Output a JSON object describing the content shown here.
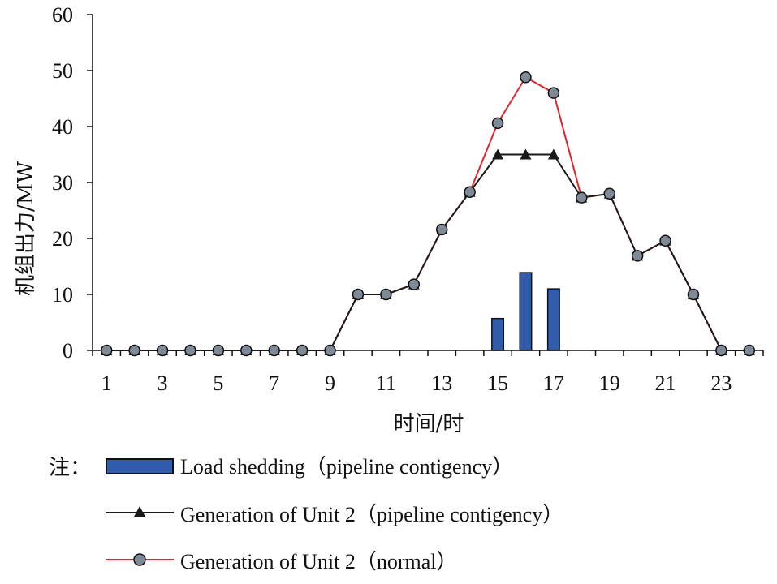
{
  "chart_data": {
    "type": "bar+line",
    "xlabel": "时间/时",
    "ylabel": "机组出力/MW",
    "ylim": [
      0,
      60
    ],
    "yticks": [
      0,
      10,
      20,
      30,
      40,
      50,
      60
    ],
    "xlim": [
      1,
      24
    ],
    "xticks": [
      1,
      3,
      5,
      7,
      9,
      11,
      13,
      15,
      17,
      19,
      21,
      23
    ],
    "x": [
      1,
      2,
      3,
      4,
      5,
      6,
      7,
      8,
      9,
      10,
      11,
      12,
      13,
      14,
      15,
      16,
      17,
      18,
      19,
      20,
      21,
      22,
      23,
      24
    ],
    "bars": {
      "name": "Load shedding（pipeline contigency）",
      "color": "#2f5dab",
      "x": [
        15,
        16,
        17
      ],
      "values": [
        5.7,
        13.9,
        11.0
      ]
    },
    "series": [
      {
        "name": "Generation of Unit 2（pipeline contigency）",
        "color": "#1a1a1a",
        "marker": "triangle",
        "values": [
          0,
          0,
          0,
          0,
          0,
          0,
          0,
          0,
          0,
          10,
          10,
          11.8,
          21.6,
          28.3,
          35,
          35,
          35,
          27.3,
          28,
          16.9,
          19.6,
          10,
          0,
          0
        ]
      },
      {
        "name": "Generation of Unit 2（normal）",
        "color": "#e0262b",
        "marker": "circle",
        "values": [
          0,
          0,
          0,
          0,
          0,
          0,
          0,
          0,
          0,
          10,
          10,
          11.8,
          21.6,
          28.3,
          40.6,
          48.8,
          46,
          27.3,
          28,
          16.9,
          19.6,
          10,
          0,
          0
        ]
      }
    ],
    "legend_note": "注："
  }
}
